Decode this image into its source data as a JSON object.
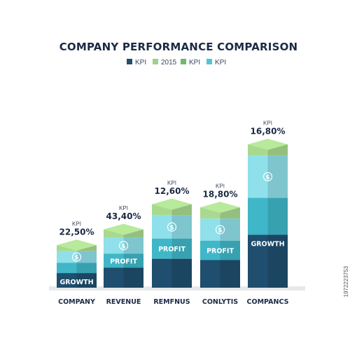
{
  "chart_data": {
    "type": "bar",
    "title": "COMPANY PERFORMANCE COMPARISON",
    "legend": [
      {
        "label": "KPI",
        "color": "#1f4e6e"
      },
      {
        "label": "2015",
        "color": "#9ed08a"
      },
      {
        "label": "KPI",
        "color": "#6fba6a"
      },
      {
        "label": "KPI",
        "color": "#4fc6d6"
      }
    ],
    "categories": [
      "COMPANY",
      "REVENUE",
      "REMFNUS",
      "CONLYTIS",
      "COMPANCS"
    ],
    "kpi_label": "KPI",
    "values": [
      22.5,
      43.4,
      12.6,
      18.8,
      16.8
    ],
    "value_labels": [
      "22,50%",
      "43,40%",
      "12,60%",
      "18,80%",
      "16,80%"
    ],
    "relative_heights": [
      0.27,
      0.37,
      0.53,
      0.51,
      0.91
    ],
    "segment_labels": [
      "GROWTH",
      "PROFIT",
      "PROFIT",
      "PROFIT",
      "GROWTH"
    ],
    "colors": {
      "top": "#a9d98f",
      "light_seg": "#8fe0ea",
      "mid_seg": "#3fb7c8",
      "dark_seg": "#1f4e6e",
      "shadow": "#e6e8ea"
    }
  },
  "stock_id": "1972223753"
}
